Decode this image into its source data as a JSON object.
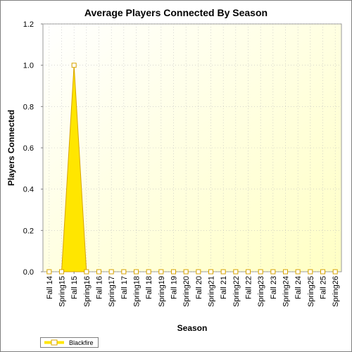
{
  "colors": {
    "series": "#ffe600",
    "series_stroke": "#d8a400",
    "plot_bg_top_left": "#ffffff",
    "plot_bg_bottom_right": "#ffffc4",
    "grid": "#bdbdbd"
  },
  "chart_data": {
    "type": "area",
    "title": "Average Players Connected By Season",
    "xlabel": "Season",
    "ylabel": "Players Connected",
    "ylim": [
      0,
      1.2
    ],
    "y_ticks": [
      "0.0",
      "0.2",
      "0.4",
      "0.6",
      "0.8",
      "1.0",
      "1.2"
    ],
    "grid": true,
    "legend_position": "bottom-left",
    "categories": [
      "Fall 14",
      "Spring15",
      "Fall 15",
      "Spring16",
      "Fall 16",
      "Spring17",
      "Fall 17",
      "Spring18",
      "Fall 18",
      "Spring19",
      "Fall 19",
      "Spring20",
      "Fall 20",
      "Spring21",
      "Fall 21",
      "Spring22",
      "Fall 22",
      "Spring23",
      "Fall 23",
      "Spring24",
      "Fall 24",
      "Spring25",
      "Fall 25",
      "Spring26"
    ],
    "series": [
      {
        "name": "Blackfire",
        "values": [
          null,
          null,
          1.0,
          null,
          null,
          null,
          null,
          null,
          null,
          null,
          null,
          null,
          null,
          null,
          null,
          null,
          null,
          null,
          null,
          null,
          null,
          null,
          null,
          null
        ]
      }
    ]
  }
}
